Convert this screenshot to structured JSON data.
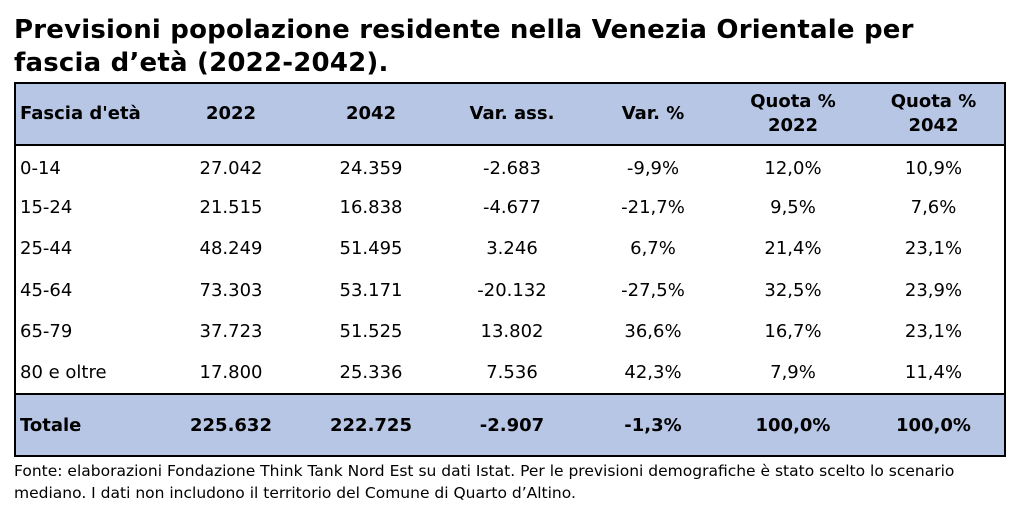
{
  "title": "Previsioni popolazione residente nella Venezia Orientale per fascia d’età (2022-2042).",
  "table": {
    "headers": [
      "Fascia d'età",
      "2022",
      "2042",
      "Var. ass.",
      "Var. %",
      "Quota % 2022",
      "Quota % 2042"
    ],
    "rows": [
      [
        "0-14",
        "27.042",
        "24.359",
        "-2.683",
        "-9,9%",
        "12,0%",
        "10,9%"
      ],
      [
        "15-24",
        "21.515",
        "16.838",
        "-4.677",
        "-21,7%",
        "9,5%",
        "7,6%"
      ],
      [
        "25-44",
        "48.249",
        "51.495",
        "3.246",
        "6,7%",
        "21,4%",
        "23,1%"
      ],
      [
        "45-64",
        "73.303",
        "53.171",
        "-20.132",
        "-27,5%",
        "32,5%",
        "23,9%"
      ],
      [
        "65-79",
        "37.723",
        "51.525",
        "13.802",
        "36,6%",
        "16,7%",
        "23,1%"
      ],
      [
        "80 e oltre",
        "17.800",
        "25.336",
        "7.536",
        "42,3%",
        "7,9%",
        "11,4%"
      ]
    ],
    "total": [
      "Totale",
      "225.632",
      "222.725",
      "-2.907",
      "-1,3%",
      "100,0%",
      "100,0%"
    ]
  },
  "note": "Fonte: elaborazioni Fondazione Think Tank Nord Est su dati Istat. Per le previsioni demografiche è stato scelto lo scenario mediano. I dati non includono il territorio del Comune di Quarto d’Altino.",
  "colors": {
    "header_bg": "#b7c6e5",
    "total_bg": "#b7c6e5"
  },
  "chart_data": {
    "type": "table",
    "title": "Previsioni popolazione residente nella Venezia Orientale per fascia d’età (2022-2042).",
    "columns": [
      "Fascia d'età",
      "2022",
      "2042",
      "Var. ass.",
      "Var. %",
      "Quota % 2022",
      "Quota % 2042"
    ],
    "categories": [
      "0-14",
      "15-24",
      "25-44",
      "45-64",
      "65-79",
      "80 e oltre",
      "Totale"
    ],
    "series": [
      {
        "name": "2022",
        "values": [
          27042,
          21515,
          48249,
          73303,
          37723,
          17800,
          225632
        ]
      },
      {
        "name": "2042",
        "values": [
          24359,
          16838,
          51495,
          53171,
          51525,
          25336,
          222725
        ]
      },
      {
        "name": "Var. ass.",
        "values": [
          -2683,
          -4677,
          3246,
          -20132,
          13802,
          7536,
          -2907
        ]
      },
      {
        "name": "Var. %",
        "values": [
          -9.9,
          -21.7,
          6.7,
          -27.5,
          36.6,
          42.3,
          -1.3
        ]
      },
      {
        "name": "Quota % 2022",
        "values": [
          12.0,
          9.5,
          21.4,
          32.5,
          16.7,
          7.9,
          100.0
        ]
      },
      {
        "name": "Quota % 2042",
        "values": [
          10.9,
          7.6,
          23.1,
          23.9,
          23.1,
          11.4,
          100.0
        ]
      }
    ]
  }
}
